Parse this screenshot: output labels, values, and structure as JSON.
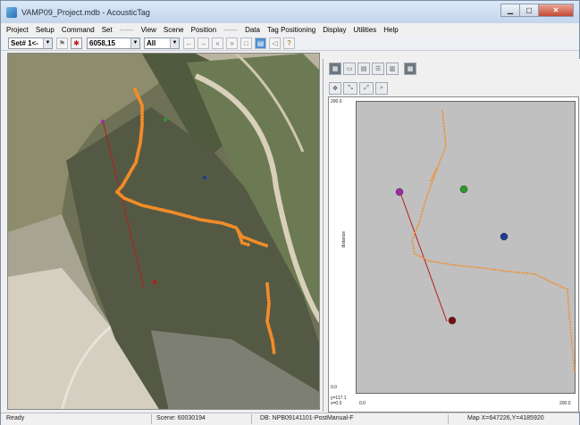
{
  "window": {
    "title": "VAMP09_Project.mdb - AcousticTag"
  },
  "titlebar_buttons": [
    "▁",
    "▢",
    "✕"
  ],
  "menu": [
    "Project",
    "Setup",
    "Command",
    "Set",
    "------",
    "View",
    "Scene",
    "Position",
    "------",
    "Data",
    "Tag Positioning",
    "Display",
    "Utilities",
    "Help"
  ],
  "toolbar": {
    "set_combo": "Set# 1<-",
    "scene_combo": "6058,15",
    "filter_combo": "All"
  },
  "plot": {
    "y_max_label": "200.0",
    "y_min_label": "0.0",
    "x_min_label": "0.0",
    "x_max_label": "200.0",
    "y_axis_title": "distance",
    "readout_y": "y=117.1",
    "readout_x": "x=0.0"
  },
  "status": {
    "state": "Ready",
    "scene": "Scene: 60030194",
    "db": "DB: NPB09141101-PostManual-F",
    "map": "Map X=647226,Y=4185920"
  },
  "colors": {
    "track": "#f28c28",
    "line": "#b81a1a",
    "marker_purple": "#9b2aa6",
    "marker_green": "#2f9a2a",
    "marker_blue": "#1e3c96",
    "marker_red": "#7a0c0c"
  }
}
